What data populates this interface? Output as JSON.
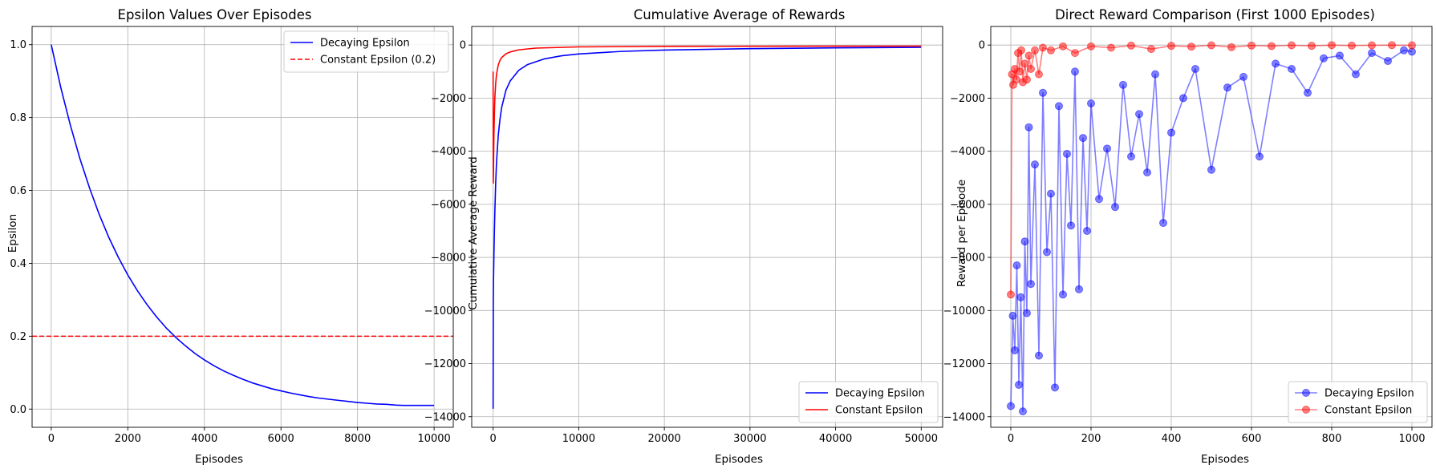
{
  "figure": {
    "background": "#ffffff"
  },
  "chart_data": [
    {
      "type": "line",
      "title": "Epsilon Values Over Episodes",
      "xlabel": "Episodes",
      "ylabel": "Epsilon",
      "xlim": [
        -500,
        10500
      ],
      "ylim": [
        -0.05,
        1.05
      ],
      "xticks": [
        0,
        2000,
        4000,
        6000,
        8000,
        10000
      ],
      "yticks": [
        0.0,
        0.2,
        0.4,
        0.6,
        0.8,
        1.0
      ],
      "ytick_decimals": 1,
      "grid": true,
      "legend_position": "top-right",
      "series": [
        {
          "name": "Decaying Epsilon",
          "color": "#0000ff",
          "style": "solid",
          "x": [
            0,
            250,
            500,
            750,
            1000,
            1250,
            1500,
            1750,
            2000,
            2250,
            2500,
            2750,
            3000,
            3250,
            3500,
            3750,
            4000,
            4250,
            4500,
            4750,
            5000,
            5250,
            5500,
            5750,
            6000,
            6250,
            6500,
            6750,
            7000,
            7250,
            7500,
            7750,
            8000,
            8250,
            8500,
            8750,
            9000,
            9200,
            9400,
            9600,
            9800,
            10000
          ],
          "y": [
            1.0,
            0.882,
            0.779,
            0.687,
            0.607,
            0.535,
            0.472,
            0.417,
            0.368,
            0.325,
            0.287,
            0.253,
            0.223,
            0.197,
            0.174,
            0.153,
            0.135,
            0.119,
            0.105,
            0.093,
            0.082,
            0.072,
            0.064,
            0.056,
            0.05,
            0.044,
            0.039,
            0.034,
            0.03,
            0.027,
            0.024,
            0.021,
            0.018,
            0.016,
            0.014,
            0.013,
            0.011,
            0.01,
            0.01,
            0.01,
            0.01,
            0.01
          ]
        },
        {
          "name": "Constant Epsilon (0.2)",
          "color": "#ff0000",
          "style": "dashed",
          "hline": 0.2
        }
      ]
    },
    {
      "type": "line",
      "title": "Cumulative Average of Rewards",
      "xlabel": "Episodes",
      "ylabel": "Cumulative Average Reward",
      "xlim": [
        -2500,
        52500
      ],
      "ylim": [
        -14400,
        700
      ],
      "xticks": [
        0,
        10000,
        20000,
        30000,
        40000,
        50000
      ],
      "yticks": [
        -14000,
        -12000,
        -10000,
        -8000,
        -6000,
        -4000,
        -2000,
        0
      ],
      "ytick_decimals": 0,
      "grid": true,
      "legend_position": "bottom-right",
      "series": [
        {
          "name": "Decaying Epsilon",
          "color": "#0000ff",
          "style": "solid",
          "x": [
            0,
            20,
            40,
            60,
            80,
            100,
            150,
            200,
            300,
            400,
            600,
            800,
            1000,
            1500,
            2000,
            3000,
            4000,
            6000,
            8000,
            10000,
            15000,
            20000,
            30000,
            40000,
            50000
          ],
          "y": [
            -13700,
            -9700,
            -8900,
            -8600,
            -8200,
            -7800,
            -7000,
            -6300,
            -5200,
            -4400,
            -3400,
            -2800,
            -2350,
            -1700,
            -1350,
            -950,
            -740,
            -520,
            -405,
            -335,
            -240,
            -190,
            -135,
            -105,
            -85
          ]
        },
        {
          "name": "Constant Epsilon",
          "color": "#ff0000",
          "style": "solid",
          "x": [
            0,
            5,
            10,
            20,
            40,
            60,
            100,
            150,
            200,
            300,
            400,
            600,
            800,
            1000,
            1500,
            2000,
            3000,
            5000,
            10000,
            20000,
            30000,
            40000,
            50000
          ],
          "y": [
            -1000,
            -2500,
            -4200,
            -5200,
            -4800,
            -4200,
            -3300,
            -2600,
            -2000,
            -1450,
            -1100,
            -750,
            -580,
            -470,
            -330,
            -260,
            -180,
            -115,
            -70,
            -50,
            -45,
            -42,
            -40
          ]
        }
      ]
    },
    {
      "type": "line",
      "title": "Direct Reward Comparison (First 1000 Episodes)",
      "xlabel": "Episodes",
      "ylabel": "Reward per Episode",
      "xlim": [
        -50,
        1050
      ],
      "ylim": [
        -14400,
        700
      ],
      "xticks": [
        0,
        200,
        400,
        600,
        800,
        1000
      ],
      "yticks": [
        -14000,
        -12000,
        -10000,
        -8000,
        -6000,
        -4000,
        -2000,
        0
      ],
      "ytick_decimals": 0,
      "grid": true,
      "legend_position": "bottom-right",
      "marker": "circle",
      "alpha": 0.5,
      "series": [
        {
          "name": "Decaying Epsilon",
          "color": "#0000ff",
          "style": "solid-markers",
          "x": [
            0,
            5,
            10,
            15,
            20,
            25,
            30,
            35,
            40,
            45,
            50,
            60,
            70,
            80,
            90,
            100,
            110,
            120,
            130,
            140,
            150,
            160,
            170,
            180,
            190,
            200,
            220,
            240,
            260,
            280,
            300,
            320,
            340,
            360,
            380,
            400,
            430,
            460,
            500,
            540,
            580,
            620,
            660,
            700,
            740,
            780,
            820,
            860,
            900,
            940,
            980,
            1000
          ],
          "y": [
            -13600,
            -10200,
            -11500,
            -8300,
            -12800,
            -9500,
            -13800,
            -7400,
            -10100,
            -3100,
            -9000,
            -4500,
            -11700,
            -1800,
            -7800,
            -5600,
            -12900,
            -2300,
            -9400,
            -4100,
            -6800,
            -1000,
            -9200,
            -3500,
            -7000,
            -2200,
            -5800,
            -3900,
            -6100,
            -1500,
            -4200,
            -2600,
            -4800,
            -1100,
            -6700,
            -3300,
            -2000,
            -900,
            -4700,
            -1600,
            -1200,
            -4200,
            -700,
            -900,
            -1800,
            -500,
            -400,
            -1100,
            -300,
            -600,
            -200,
            -250
          ]
        },
        {
          "name": "Constant Epsilon",
          "color": "#ff0000",
          "style": "solid-markers",
          "x": [
            0,
            3,
            6,
            10,
            14,
            18,
            22,
            26,
            30,
            35,
            40,
            45,
            50,
            60,
            70,
            80,
            100,
            130,
            160,
            200,
            250,
            300,
            350,
            400,
            450,
            500,
            550,
            600,
            650,
            700,
            750,
            800,
            850,
            900,
            950,
            1000
          ],
          "y": [
            -9400,
            -1100,
            -1500,
            -900,
            -1300,
            -300,
            -1000,
            -200,
            -1400,
            -700,
            -1300,
            -400,
            -900,
            -200,
            -1100,
            -100,
            -200,
            -50,
            -300,
            -50,
            -100,
            -20,
            -150,
            -30,
            -60,
            -10,
            -80,
            -20,
            -40,
            -10,
            -30,
            -5,
            -20,
            -10,
            -5,
            -10
          ]
        }
      ]
    }
  ]
}
